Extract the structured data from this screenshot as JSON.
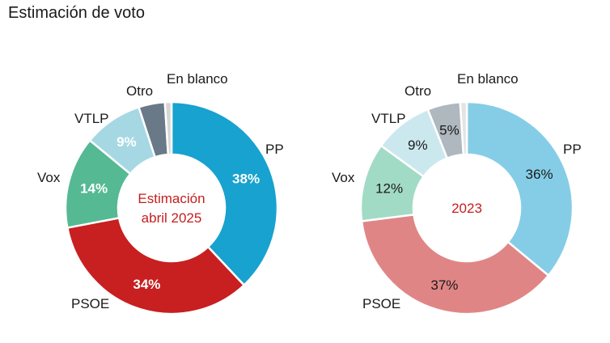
{
  "page": {
    "title": "Estimación de voto"
  },
  "chart_data": [
    {
      "type": "pie",
      "variant": "donut",
      "center_text": [
        "Estimación",
        "abril 2025"
      ],
      "slices": [
        {
          "name": "PP",
          "value": 38,
          "label": "38%",
          "color": "#17a2cf",
          "value_text_color": "#ffffff",
          "bold": true
        },
        {
          "name": "PSOE",
          "value": 34,
          "label": "34%",
          "color": "#c81f20",
          "value_text_color": "#ffffff",
          "bold": true
        },
        {
          "name": "Vox",
          "value": 14,
          "label": "14%",
          "color": "#55b994",
          "value_text_color": "#ffffff",
          "bold": true
        },
        {
          "name": "VTLP",
          "value": 9,
          "label": "9%",
          "color": "#a6d8e4",
          "value_text_color": "#ffffff",
          "bold": true
        },
        {
          "name": "Otro",
          "value": 4,
          "label": "",
          "color": "#6a7987"
        },
        {
          "name": "En blanco",
          "value": 1,
          "label": "",
          "color": "#d6d6d6"
        }
      ]
    },
    {
      "type": "pie",
      "variant": "donut",
      "center_text": [
        "2023"
      ],
      "slices": [
        {
          "name": "PP",
          "value": 36,
          "label": "36%",
          "color": "#85cde6",
          "value_text_color": "#1a1a1a",
          "bold": false
        },
        {
          "name": "PSOE",
          "value": 37,
          "label": "37%",
          "color": "#e08585",
          "value_text_color": "#1a1a1a",
          "bold": false
        },
        {
          "name": "Vox",
          "value": 12,
          "label": "12%",
          "color": "#a2dbc5",
          "value_text_color": "#1a1a1a",
          "bold": false
        },
        {
          "name": "VTLP",
          "value": 9,
          "label": "9%",
          "color": "#cbe8ef",
          "value_text_color": "#1a1a1a",
          "bold": false
        },
        {
          "name": "Otro",
          "value": 5,
          "label": "5%",
          "color": "#afb7bf",
          "value_text_color": "#1a1a1a",
          "bold": false
        },
        {
          "name": "En blanco",
          "value": 1,
          "label": "",
          "color": "#e3e3e3"
        }
      ]
    }
  ]
}
